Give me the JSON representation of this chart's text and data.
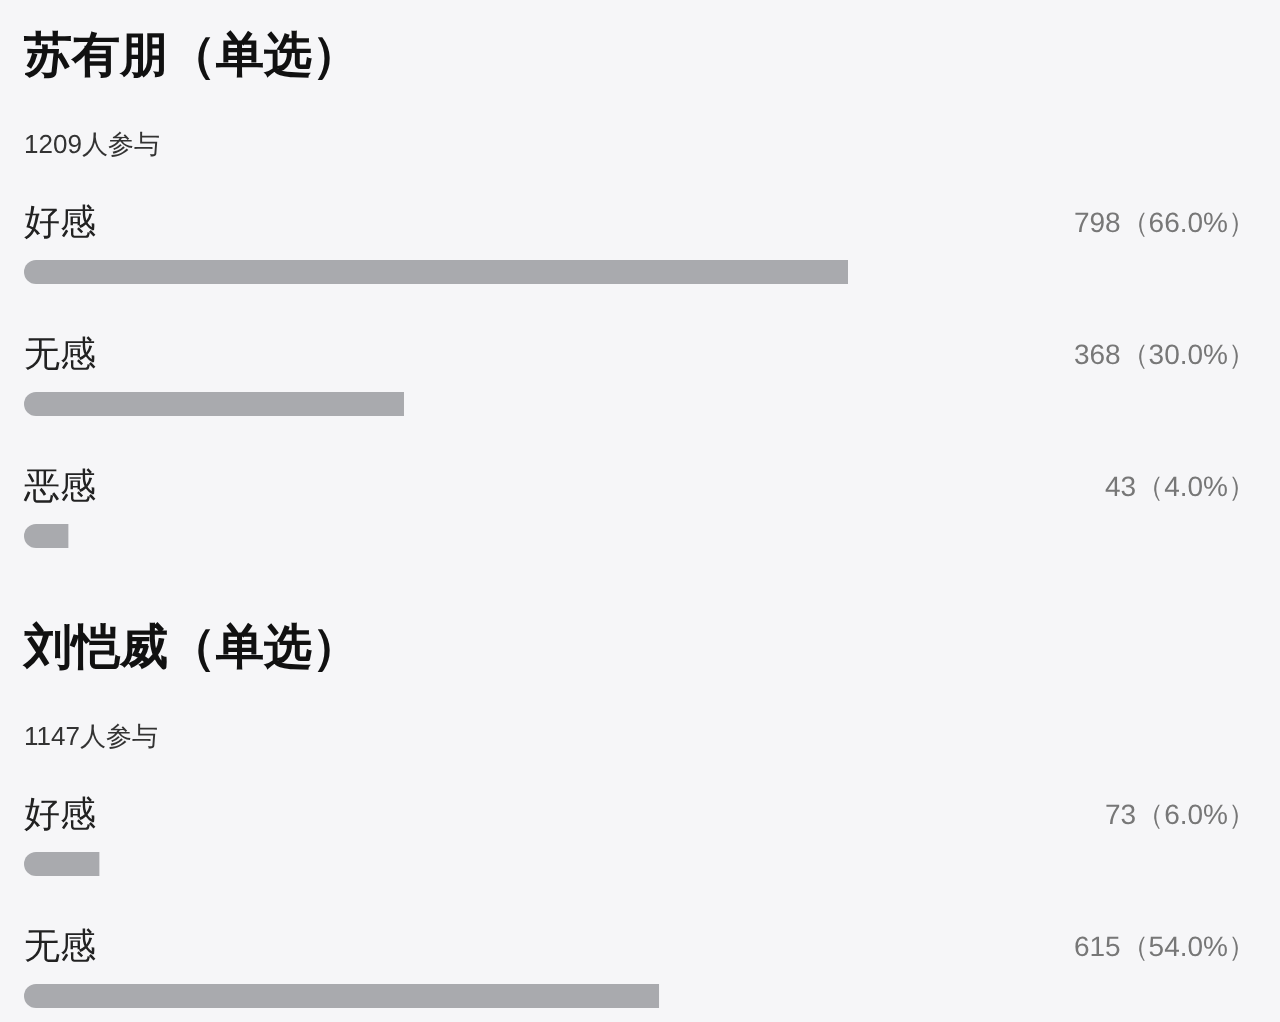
{
  "chart_data": [
    {
      "type": "bar",
      "orientation": "horizontal",
      "title": "苏有朋（单选）",
      "subtitle": "1209人参与",
      "categories": [
        "好感",
        "无感",
        "恶感"
      ],
      "values": [
        798,
        368,
        43
      ],
      "value_labels": [
        "798（66.0%）",
        "368（30.0%）",
        "43（4.0%）"
      ],
      "color": "#a9aaae"
    },
    {
      "type": "bar",
      "orientation": "horizontal",
      "title": "刘恺威（单选）",
      "subtitle": "1147人参与",
      "categories": [
        "好感",
        "无感"
      ],
      "values": [
        73,
        615
      ],
      "value_labels": [
        "73（6.0%）",
        "615（54.0%）"
      ],
      "color": "#a9aaae"
    }
  ]
}
